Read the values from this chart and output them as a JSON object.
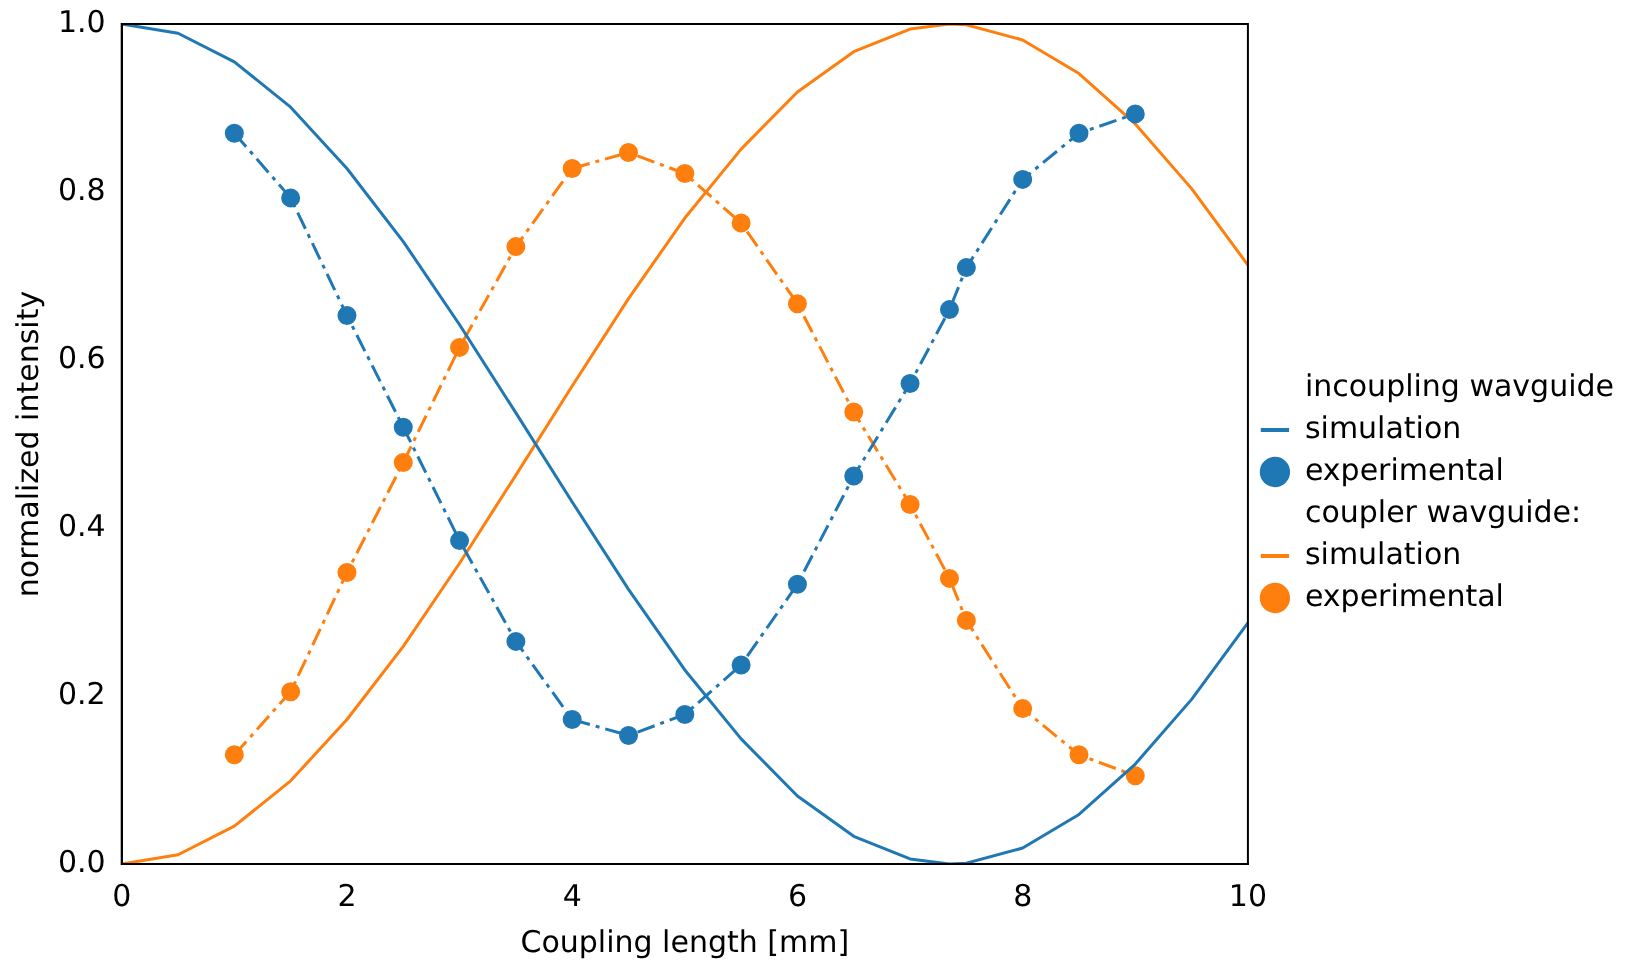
{
  "chart_data": {
    "type": "line",
    "xlabel": "Coupling length [mm]",
    "ylabel": "normalized intensity",
    "xlim": [
      0,
      10
    ],
    "ylim": [
      0,
      1
    ],
    "xticks": [
      0,
      2,
      4,
      6,
      8,
      10
    ],
    "yticks": [
      {
        "value": 0,
        "label": "0.0"
      },
      {
        "value": 0.2,
        "label": "0.2"
      },
      {
        "value": 0.4,
        "label": "0.4"
      },
      {
        "value": 0.6,
        "label": "0.6"
      },
      {
        "value": 0.8,
        "label": "0.8"
      },
      {
        "value": 1,
        "label": "1.0"
      }
    ],
    "grid": false,
    "legend": "right",
    "annotations": [
      "incoupling wavguide",
      "coupler wavguide:"
    ],
    "series": [
      {
        "name": "simulation",
        "color": "#1f77b4",
        "marker": "none",
        "line_style": "solid",
        "x": [
          0,
          0.5,
          1,
          1.5,
          2,
          2.5,
          3,
          3.5,
          4,
          4.5,
          5,
          5.5,
          6,
          6.5,
          7,
          7.35,
          7.5,
          8,
          8.5,
          9,
          9.5,
          10
        ],
        "values": [
          1,
          0.989,
          0.955,
          0.901,
          0.828,
          0.741,
          0.642,
          0.537,
          0.431,
          0.327,
          0.231,
          0.149,
          0.081,
          0.033,
          0.006,
          0,
          0.001,
          0.019,
          0.059,
          0.119,
          0.196,
          0.287
        ]
      },
      {
        "name": "experimental",
        "color": "#1f77b4",
        "marker": "circle",
        "line_style": "dashdot",
        "x": [
          1,
          1.5,
          2,
          2.5,
          3,
          3.5,
          4,
          4.5,
          5,
          5.5,
          6,
          6.5,
          7,
          7.35,
          7.5,
          8,
          8.5,
          9
        ],
        "values": [
          0.87,
          0.793,
          0.653,
          0.52,
          0.385,
          0.265,
          0.172,
          0.153,
          0.178,
          0.237,
          0.333,
          0.462,
          0.572,
          0.66,
          0.71,
          0.815,
          0.87,
          0.893
        ]
      },
      {
        "name": "simulation",
        "color": "#ff7f0e",
        "marker": "none",
        "line_style": "solid",
        "x": [
          0,
          0.5,
          1,
          1.5,
          2,
          2.5,
          3,
          3.5,
          4,
          4.5,
          5,
          5.5,
          6,
          6.5,
          7,
          7.35,
          7.5,
          8,
          8.5,
          9,
          9.5,
          10
        ],
        "values": [
          0,
          0.011,
          0.045,
          0.099,
          0.172,
          0.259,
          0.358,
          0.463,
          0.569,
          0.673,
          0.769,
          0.851,
          0.919,
          0.967,
          0.994,
          1,
          0.999,
          0.981,
          0.941,
          0.881,
          0.804,
          0.713
        ]
      },
      {
        "name": "experimental",
        "color": "#ff7f0e",
        "marker": "circle",
        "line_style": "dashdot",
        "x": [
          1,
          1.5,
          2,
          2.5,
          3,
          3.5,
          4,
          4.5,
          5,
          5.5,
          6,
          6.5,
          7,
          7.35,
          7.5,
          8,
          8.5,
          9
        ],
        "values": [
          0.13,
          0.205,
          0.347,
          0.478,
          0.615,
          0.735,
          0.828,
          0.847,
          0.822,
          0.763,
          0.667,
          0.538,
          0.428,
          0.34,
          0.29,
          0.185,
          0.13,
          0.105
        ]
      }
    ]
  }
}
